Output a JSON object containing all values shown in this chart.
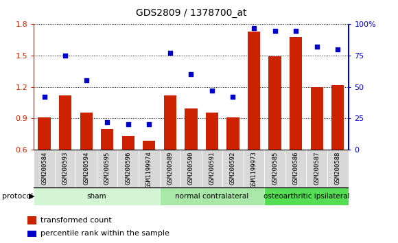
{
  "title": "GDS2809 / 1378700_at",
  "samples": [
    "GSM200584",
    "GSM200593",
    "GSM200594",
    "GSM200595",
    "GSM200596",
    "GSM1199974",
    "GSM200589",
    "GSM200590",
    "GSM200591",
    "GSM200592",
    "GSM1199973",
    "GSM200585",
    "GSM200586",
    "GSM200587",
    "GSM200588"
  ],
  "bar_values": [
    0.905,
    1.115,
    0.955,
    0.795,
    0.73,
    0.685,
    1.115,
    0.995,
    0.955,
    0.91,
    1.73,
    1.49,
    1.68,
    1.2,
    1.215
  ],
  "dot_values": [
    42,
    75,
    55,
    22,
    20,
    20,
    77,
    60,
    47,
    42,
    97,
    95,
    95,
    82,
    80
  ],
  "bar_color": "#cc2200",
  "dot_color": "#0000cc",
  "ylim_left": [
    0.6,
    1.8
  ],
  "ylim_right": [
    0,
    100
  ],
  "yticks_left": [
    0.6,
    0.9,
    1.2,
    1.5,
    1.8
  ],
  "yticks_right": [
    0,
    25,
    50,
    75,
    100
  ],
  "ytick_labels_right": [
    "0",
    "25",
    "50",
    "75",
    "100%"
  ],
  "groups": [
    {
      "label": "sham",
      "start": 0,
      "end": 5,
      "color": "#d4f5d4"
    },
    {
      "label": "normal contralateral",
      "start": 6,
      "end": 10,
      "color": "#aae8aa"
    },
    {
      "label": "osteoarthritic ipsilateral",
      "start": 11,
      "end": 14,
      "color": "#55dd55"
    }
  ],
  "protocol_label": "protocol",
  "legend_bar_label": "transformed count",
  "legend_dot_label": "percentile rank within the sample",
  "bg_color": "#ffffff"
}
